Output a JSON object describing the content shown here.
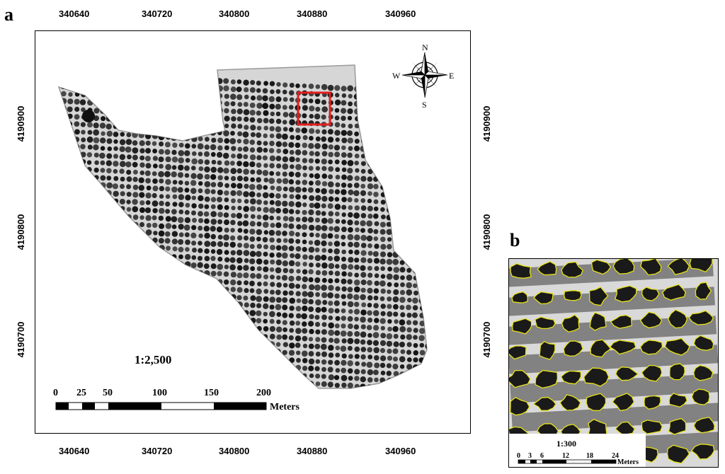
{
  "panel_a": {
    "letter": "a",
    "x_ticks": [
      "340640",
      "340720",
      "340800",
      "340880",
      "340960"
    ],
    "y_ticks": [
      "4190900",
      "4190800",
      "4190700"
    ],
    "scale_ratio": "1:2,500",
    "scale_bar_labels": [
      "0",
      "25",
      "50",
      "100",
      "150",
      "200"
    ],
    "scale_unit": "Meters",
    "compass": {
      "north": "N",
      "south": "S",
      "east": "E",
      "west": "W"
    },
    "highlight_color": "#e41e1e"
  },
  "panel_b": {
    "letter": "b",
    "scale_ratio": "1:300",
    "scale_bar_labels": [
      "0",
      "3",
      "6",
      "12",
      "18",
      "24"
    ],
    "scale_unit": "Meters",
    "outline_color": "#e6e21a"
  }
}
